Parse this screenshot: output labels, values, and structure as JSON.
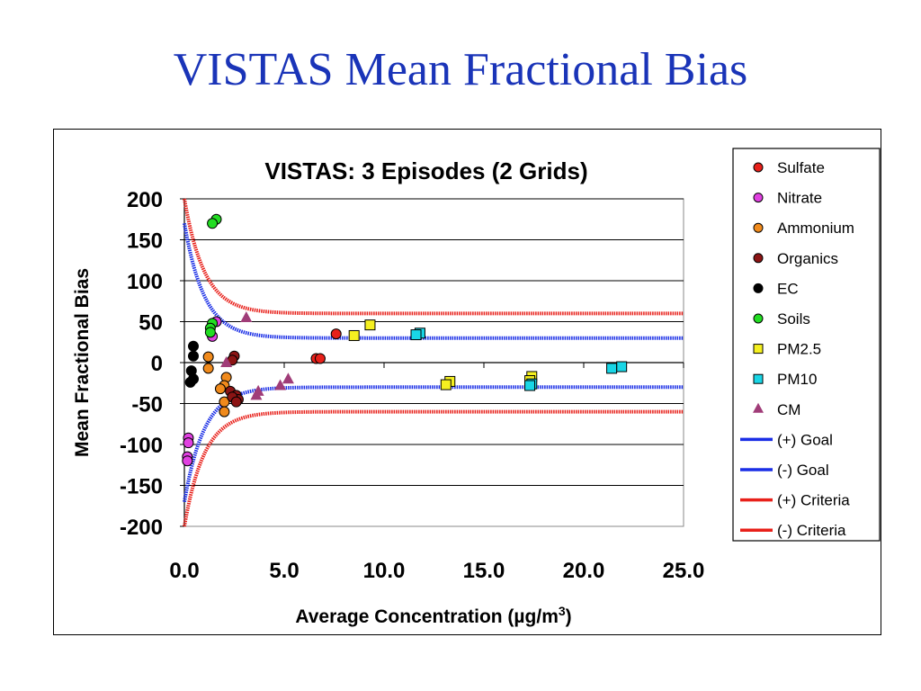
{
  "slide": {
    "title": "VISTAS Mean Fractional Bias"
  },
  "chart_data": {
    "type": "scatter",
    "title": "VISTAS: 3 Episodes (2 Grids)",
    "xlabel": "Average Concentration (µg/m³)",
    "ylabel": "Mean Fractional Bias",
    "xlim": [
      0,
      25
    ],
    "ylim": [
      -200,
      200
    ],
    "x_ticks": [
      "0.0",
      "5.0",
      "10.0",
      "15.0",
      "20.0",
      "25.0"
    ],
    "y_ticks": [
      "200",
      "150",
      "100",
      "50",
      "0",
      "-50",
      "-100",
      "-150",
      "-200"
    ],
    "grid": "horizontal",
    "legend_position": "right",
    "series": [
      {
        "name": "Sulfate",
        "marker": "circle",
        "color": "#e8201a",
        "points": [
          [
            7.6,
            35
          ],
          [
            6.6,
            5
          ],
          [
            6.8,
            5
          ]
        ]
      },
      {
        "name": "Nitrate",
        "marker": "circle",
        "color": "#e040e0",
        "points": [
          [
            1.6,
            50
          ],
          [
            1.4,
            32
          ],
          [
            0.2,
            -92
          ],
          [
            0.2,
            -98
          ],
          [
            0.15,
            -115
          ],
          [
            0.15,
            -120
          ]
        ]
      },
      {
        "name": "Ammonium",
        "marker": "circle",
        "color": "#f08a1c",
        "points": [
          [
            1.2,
            7
          ],
          [
            1.2,
            -7
          ],
          [
            2.1,
            -18
          ],
          [
            2.0,
            -28
          ],
          [
            1.8,
            -32
          ],
          [
            2.0,
            -48
          ],
          [
            2.0,
            -60
          ]
        ]
      },
      {
        "name": "Organics",
        "marker": "circle",
        "color": "#8c1414",
        "points": [
          [
            2.5,
            8
          ],
          [
            2.4,
            3
          ],
          [
            2.3,
            -35
          ],
          [
            2.6,
            -40
          ],
          [
            2.7,
            -45
          ],
          [
            2.4,
            -42
          ],
          [
            2.6,
            -48
          ]
        ]
      },
      {
        "name": "EC",
        "marker": "circle",
        "color": "#000000",
        "points": [
          [
            0.45,
            20
          ],
          [
            0.45,
            8
          ],
          [
            0.35,
            -10
          ],
          [
            0.45,
            -20
          ],
          [
            0.3,
            -24
          ]
        ]
      },
      {
        "name": "Soils",
        "marker": "circle",
        "color": "#22dd22",
        "points": [
          [
            1.6,
            175
          ],
          [
            1.4,
            170
          ],
          [
            1.4,
            48
          ],
          [
            1.3,
            42
          ],
          [
            1.3,
            37
          ]
        ]
      },
      {
        "name": "PM2.5",
        "marker": "square",
        "color": "#f5f020",
        "points": [
          [
            9.3,
            46
          ],
          [
            8.5,
            33
          ],
          [
            13.3,
            -23
          ],
          [
            13.1,
            -27
          ],
          [
            17.4,
            -17
          ],
          [
            17.3,
            -22
          ]
        ]
      },
      {
        "name": "PM10",
        "marker": "square",
        "color": "#19d6e6",
        "points": [
          [
            11.8,
            36
          ],
          [
            11.6,
            34
          ],
          [
            21.9,
            -5
          ],
          [
            21.4,
            -7
          ],
          [
            17.4,
            -26
          ],
          [
            17.3,
            -28
          ]
        ]
      },
      {
        "name": "CM",
        "marker": "triangle",
        "color": "#a03c78",
        "points": [
          [
            3.1,
            55
          ],
          [
            2.1,
            0
          ],
          [
            5.2,
            -20
          ],
          [
            4.8,
            -28
          ],
          [
            3.7,
            -35
          ],
          [
            3.6,
            -40
          ]
        ]
      }
    ],
    "lines": [
      {
        "name": "(+) Goal",
        "color": "#1a2ee6",
        "formula": "30 + 140·e^(−0.5·c/0.5)"
      },
      {
        "name": "(-) Goal",
        "color": "#1a2ee6",
        "formula": "−(30 + 140·e^(−0.5·c/0.5))"
      },
      {
        "name": "(+) Criteria",
        "color": "#e8201a",
        "formula": "60 + 140·e^(−0.5·c/0.5)"
      },
      {
        "name": "(-) Criteria",
        "color": "#e8201a",
        "formula": "−(60 + 140·e^(−0.5·c/0.5))"
      }
    ]
  }
}
